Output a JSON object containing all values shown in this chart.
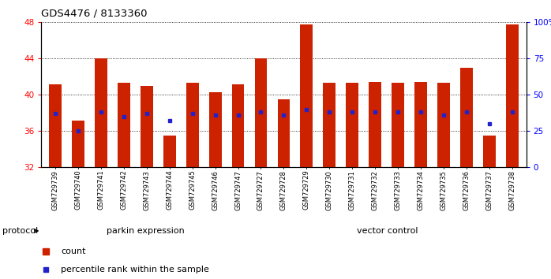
{
  "title": "GDS4476 / 8133360",
  "samples": [
    "GSM729739",
    "GSM729740",
    "GSM729741",
    "GSM729742",
    "GSM729743",
    "GSM729744",
    "GSM729745",
    "GSM729746",
    "GSM729747",
    "GSM729727",
    "GSM729728",
    "GSM729729",
    "GSM729730",
    "GSM729731",
    "GSM729732",
    "GSM729733",
    "GSM729734",
    "GSM729735",
    "GSM729736",
    "GSM729737",
    "GSM729738"
  ],
  "bar_values": [
    41.2,
    37.2,
    44.0,
    41.3,
    41.0,
    35.5,
    41.3,
    40.3,
    41.2,
    44.0,
    39.5,
    47.8,
    41.3,
    41.3,
    41.4,
    41.3,
    41.4,
    41.3,
    43.0,
    35.5,
    47.8
  ],
  "dot_percentile": [
    37,
    25,
    38,
    35,
    37,
    32,
    37,
    36,
    36,
    38,
    36,
    40,
    38,
    38,
    38,
    38,
    38,
    36,
    38,
    30,
    38
  ],
  "parkin_count": 9,
  "vector_count": 12,
  "ylim_left": [
    32,
    48
  ],
  "ylim_right": [
    0,
    100
  ],
  "yticks_left": [
    32,
    36,
    40,
    44,
    48
  ],
  "yticks_right": [
    0,
    25,
    50,
    75,
    100
  ],
  "bar_color": "#CC2200",
  "dot_color": "#2222CC",
  "parkin_label": "parkin expression",
  "vector_label": "vector control",
  "parkin_color": "#BBFFBB",
  "vector_color": "#44DD44",
  "legend_count": "count",
  "legend_percentile": "percentile rank within the sample",
  "protocol_label": "protocol"
}
